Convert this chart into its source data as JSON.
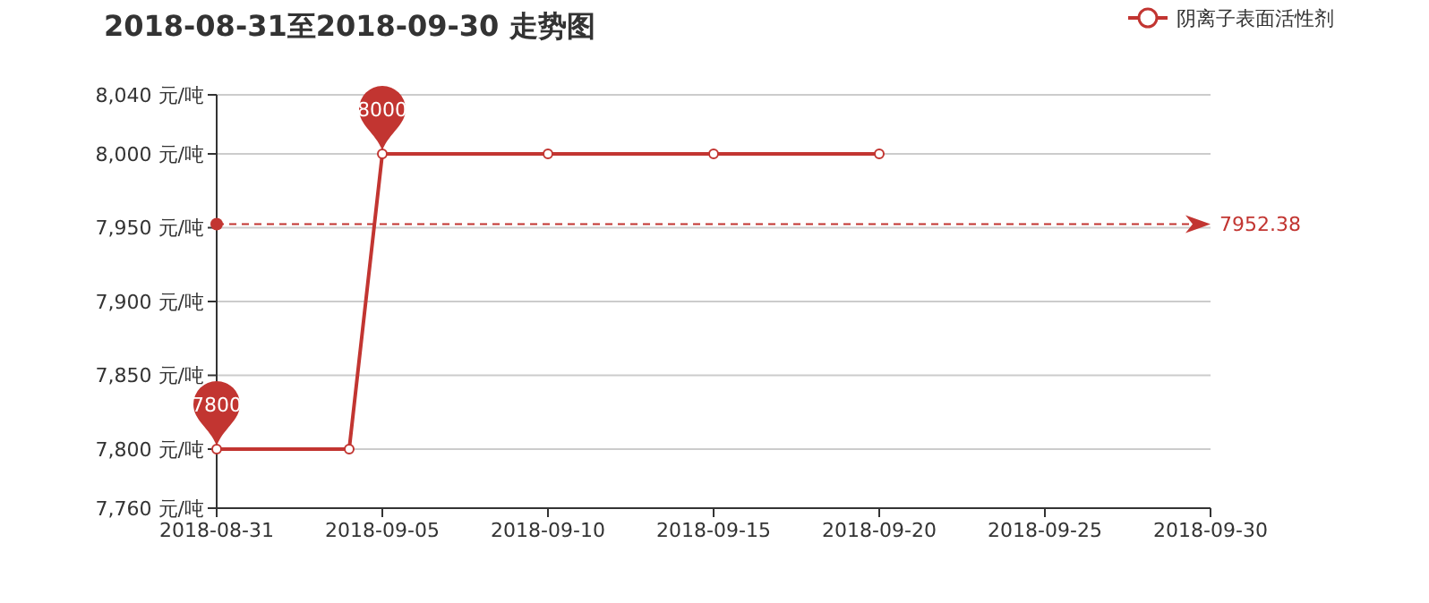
{
  "chart_data": {
    "type": "line",
    "title": "2018-08-31至2018-09-30 走势图",
    "x": [
      "2018-08-31",
      "2018-09-04",
      "2018-09-05",
      "2018-09-10",
      "2018-09-15",
      "2018-09-20"
    ],
    "series": [
      {
        "name": "阴离子表面活性剂",
        "color": "#c23531",
        "values": [
          7800,
          7800,
          8000,
          8000,
          8000,
          8000
        ]
      }
    ],
    "xlim": [
      "2018-08-31",
      "2018-09-30"
    ],
    "xticks": [
      "2018-08-31",
      "2018-09-05",
      "2018-09-10",
      "2018-09-15",
      "2018-09-20",
      "2018-09-25",
      "2018-09-30"
    ],
    "ylim": [
      7760,
      8040
    ],
    "yticks": [
      {
        "value": 7760,
        "label": "7,760 元/吨"
      },
      {
        "value": 7800,
        "label": "7,800 元/吨"
      },
      {
        "value": 7850,
        "label": "7,850 元/吨"
      },
      {
        "value": 7900,
        "label": "7,900 元/吨"
      },
      {
        "value": 7950,
        "label": "7,950 元/吨"
      },
      {
        "value": 8000,
        "label": "8,000 元/吨"
      },
      {
        "value": 8040,
        "label": "8,040 元/吨"
      }
    ],
    "grid": "y",
    "legend": "top right",
    "marker": "circle",
    "line_style": "solid",
    "ref_lines": [
      {
        "axis": "y",
        "value": 7952.38,
        "label": "7952.38",
        "color": "#c23531",
        "line_style": "dashed"
      }
    ],
    "annotations": [
      {
        "text": "8000",
        "x": "2018-09-05",
        "y": 8000
      },
      {
        "text": "7800",
        "x": "2018-08-31",
        "y": 7800
      }
    ]
  }
}
